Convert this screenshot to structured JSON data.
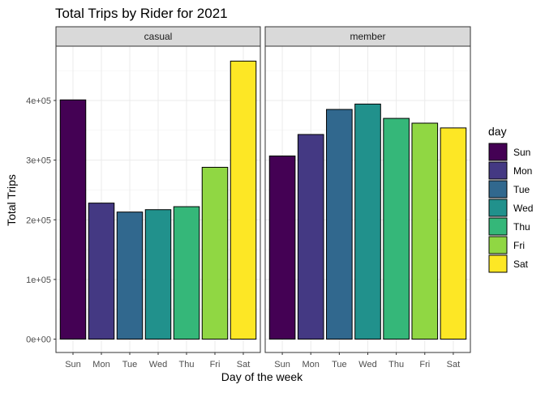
{
  "chart_data": {
    "type": "bar",
    "title": "Total Trips by Rider for 2021",
    "xlabel": "Day of the week",
    "ylabel": "Total Trips",
    "categories": [
      "Sun",
      "Mon",
      "Tue",
      "Wed",
      "Thu",
      "Fri",
      "Sat"
    ],
    "ylim": [
      0,
      500000
    ],
    "yticks": [
      0,
      100000,
      200000,
      300000,
      400000
    ],
    "ytick_labels": [
      "0e+00",
      "1e+05",
      "2e+05",
      "3e+05",
      "4e+05"
    ],
    "grid": true,
    "legend_placement": "right",
    "legend": {
      "title": "day",
      "entries": [
        "Sun",
        "Mon",
        "Tue",
        "Wed",
        "Thu",
        "Fri",
        "Sat"
      ]
    },
    "colors": [
      "#440154",
      "#443983",
      "#31688e",
      "#21918c",
      "#35b779",
      "#90d743",
      "#fde725"
    ],
    "panels": [
      {
        "label": "casual",
        "values": [
          401000,
          228000,
          213000,
          217000,
          222000,
          288000,
          466000
        ]
      },
      {
        "label": "member",
        "values": [
          307000,
          343000,
          385000,
          394000,
          370000,
          362000,
          354000
        ]
      }
    ]
  }
}
